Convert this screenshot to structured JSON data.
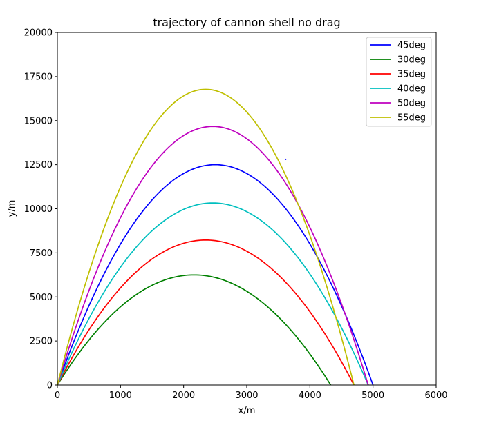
{
  "chart_data": {
    "type": "line",
    "title": "trajectory of cannon shell no drag",
    "xlabel": "x/m",
    "ylabel": "y/m",
    "xlim": [
      0,
      6000
    ],
    "ylim": [
      0,
      20000
    ],
    "x_ticks": [
      "0",
      "1000",
      "2000",
      "3000",
      "4000",
      "5000",
      "6000"
    ],
    "y_ticks": [
      "0",
      "2500",
      "5000",
      "7500",
      "10000",
      "12500",
      "15000",
      "17500",
      "20000"
    ],
    "grid": false,
    "legend_position": "top-right",
    "series": [
      {
        "name": "45deg",
        "color": "#0000ff",
        "peak_x": 2500,
        "peak_y": 12500,
        "range": 5000
      },
      {
        "name": "30deg",
        "color": "#008000",
        "peak_x": 2165,
        "peak_y": 6250,
        "range": 4330
      },
      {
        "name": "35deg",
        "color": "#ff0000",
        "peak_x": 2349,
        "peak_y": 8226,
        "range": 4698
      },
      {
        "name": "40deg",
        "color": "#00bfbf",
        "peak_x": 2462,
        "peak_y": 10330,
        "range": 4924
      },
      {
        "name": "50deg",
        "color": "#bf00bf",
        "peak_x": 2462,
        "peak_y": 14670,
        "range": 4924
      },
      {
        "name": "55deg",
        "color": "#bfbf00",
        "peak_x": 2349,
        "peak_y": 16774,
        "range": 4698
      }
    ],
    "stray_mark": {
      "x": 3620,
      "y": 12800,
      "color": "#0000ff"
    }
  }
}
